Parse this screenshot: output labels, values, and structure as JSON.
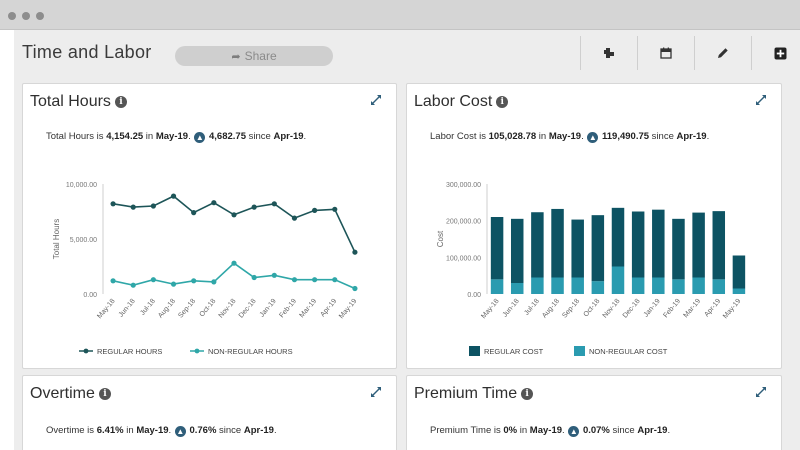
{
  "page_title": "Time and Labor",
  "share_label": "Share",
  "toolbar": [
    "settings-icon",
    "calendar-icon",
    "edit-icon",
    "add-icon"
  ],
  "panels": {
    "total_hours": {
      "title": "Total Hours",
      "summary": {
        "prefix": "Total Hours is ",
        "value": "4,154.25",
        "in": " in ",
        "period": "May-19",
        "sep": ". ",
        "delta": "4,682.75",
        "since": " since ",
        "prev": "Apr-19",
        "end": "."
      }
    },
    "labor_cost": {
      "title": "Labor Cost",
      "summary": {
        "prefix": "Labor Cost is ",
        "value": "105,028.78",
        "in": " in ",
        "period": "May-19",
        "sep": ". ",
        "delta": "119,490.75",
        "since": " since ",
        "prev": "Apr-19",
        "end": "."
      }
    },
    "overtime": {
      "title": "Overtime",
      "summary": {
        "prefix": "Overtime is ",
        "value": "6.41%",
        "in": " in ",
        "period": "May-19",
        "sep": ". ",
        "delta": "0.76%",
        "since": " since ",
        "prev": "Apr-19",
        "end": "."
      }
    },
    "premium_time": {
      "title": "Premium Time",
      "summary": {
        "prefix": "Premium Time is ",
        "value": "0%",
        "in": " in ",
        "period": "May-19",
        "sep": ". ",
        "delta": "0.07%",
        "since": " since ",
        "prev": "Apr-19",
        "end": "."
      }
    }
  },
  "chart_data": [
    {
      "type": "line",
      "categories": [
        "May-18",
        "Jun-18",
        "Jul-18",
        "Aug-18",
        "Sep-18",
        "Oct-18",
        "Nov-18",
        "Dec-18",
        "Jan-19",
        "Feb-19",
        "Mar-19",
        "Apr-19",
        "May-19"
      ],
      "ylabel": "Total Hours",
      "ylim": [
        0,
        10000
      ],
      "yticks": [
        "0.00",
        "5,000.00",
        "10,000.00"
      ],
      "ytick_values": [
        0,
        5000,
        10000
      ],
      "series": [
        {
          "name": "REGULAR HOURS",
          "color": "#1d5558",
          "values": [
            8200,
            7900,
            8000,
            8900,
            7400,
            8300,
            7200,
            7900,
            8200,
            6900,
            7600,
            7700,
            3800
          ]
        },
        {
          "name": "NON-REGULAR HOURS",
          "color": "#2fa7a8",
          "values": [
            1200,
            800,
            1300,
            900,
            1200,
            1100,
            2800,
            1500,
            1700,
            1300,
            1300,
            1300,
            500
          ]
        }
      ],
      "legend": "bottom"
    },
    {
      "type": "bar",
      "stacked": true,
      "categories": [
        "May-18",
        "Jun-18",
        "Jul-18",
        "Aug-18",
        "Sep-18",
        "Oct-18",
        "Nov-18",
        "Dec-18",
        "Jan-19",
        "Feb-19",
        "Mar-19",
        "Apr-19",
        "May-19"
      ],
      "ylabel": "Cost",
      "ylim": [
        0,
        300000
      ],
      "yticks": [
        "0.00",
        "100,000.00",
        "200,000.00",
        "300,000.00"
      ],
      "ytick_values": [
        0,
        100000,
        200000,
        300000
      ],
      "series": [
        {
          "name": "REGULAR COST",
          "color": "#0d5363",
          "values": [
            170000,
            175000,
            178000,
            187000,
            158000,
            180000,
            160000,
            180000,
            185000,
            165000,
            177000,
            186000,
            90000
          ]
        },
        {
          "name": "NON-REGULAR COST",
          "color": "#2a9bb0",
          "values": [
            40000,
            30000,
            45000,
            45000,
            45000,
            35000,
            75000,
            45000,
            45000,
            40000,
            45000,
            40000,
            15000
          ]
        }
      ],
      "legend": "bottom"
    }
  ]
}
